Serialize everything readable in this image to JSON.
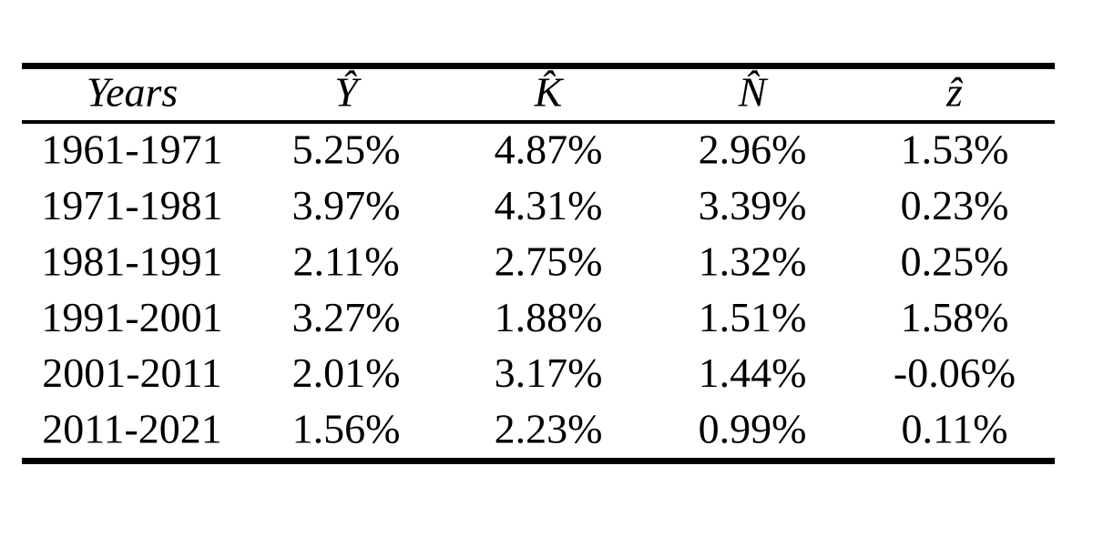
{
  "table": {
    "header": [
      "Years",
      "Ŷ",
      "K̂",
      "N̂",
      "ẑ"
    ],
    "rows": [
      [
        "1961-1971",
        "5.25%",
        "4.87%",
        "2.96%",
        "1.53%"
      ],
      [
        "1971-1981",
        "3.97%",
        "4.31%",
        "3.39%",
        "0.23%"
      ],
      [
        "1981-1991",
        "2.11%",
        "2.75%",
        "1.32%",
        "0.25%"
      ],
      [
        "1991-2001",
        "3.27%",
        "1.88%",
        "1.51%",
        "1.58%"
      ],
      [
        "2001-2011",
        "2.01%",
        "3.17%",
        "1.44%",
        "-0.06%"
      ],
      [
        "2011-2021",
        "1.56%",
        "2.23%",
        "0.99%",
        "0.11%"
      ]
    ]
  }
}
